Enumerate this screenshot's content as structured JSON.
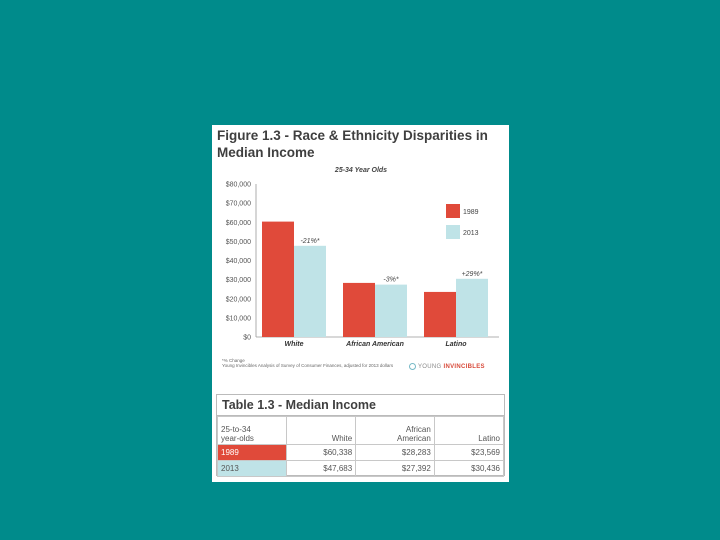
{
  "figure": {
    "title_line1": "Figure 1.3 - Race & Ethnicity Disparities in",
    "title_line2": "Median Income",
    "note_line1": "*% Change",
    "note_line2": "Young Invincibles Analysis of Survey of Consumer Finances, adjusted for 2013 dollars",
    "logo_young": "YOUNG",
    "logo_invincibles": "INVINCIBLES"
  },
  "chart_data": {
    "type": "bar",
    "title": "25-34 Year Olds",
    "categories": [
      "White",
      "African American",
      "Latino"
    ],
    "series": [
      {
        "name": "1989",
        "color": "#e04a3a",
        "values": [
          60338,
          28283,
          23569
        ]
      },
      {
        "name": "2013",
        "color": "#bfe3e7",
        "values": [
          47683,
          27392,
          30436
        ]
      }
    ],
    "annotations": [
      "-21%*",
      "-3%*",
      "+29%*"
    ],
    "ylim": [
      0,
      80000
    ],
    "yticks": [
      "$0",
      "$10,000",
      "$20,000",
      "$30,000",
      "$40,000",
      "$50,000",
      "$60,000",
      "$70,000",
      "$80,000"
    ],
    "ytick_values": [
      0,
      10000,
      20000,
      30000,
      40000,
      50000,
      60000,
      70000,
      80000
    ],
    "legend_position": "right",
    "grid": false
  },
  "table": {
    "title": "Table 1.3 -  Median Income",
    "header": {
      "col0_line1": "25-to-34",
      "col0_line2": "year-olds",
      "white": "White",
      "aa_line1": "African",
      "aa_line2": "American",
      "latino": "Latino"
    },
    "rows": [
      {
        "label": "1989",
        "white": "$60,338",
        "aa": "$28,283",
        "latino": "$23,569"
      },
      {
        "label": "2013",
        "white": "$47,683",
        "aa": "$27,392",
        "latino": "$30,436"
      }
    ]
  }
}
